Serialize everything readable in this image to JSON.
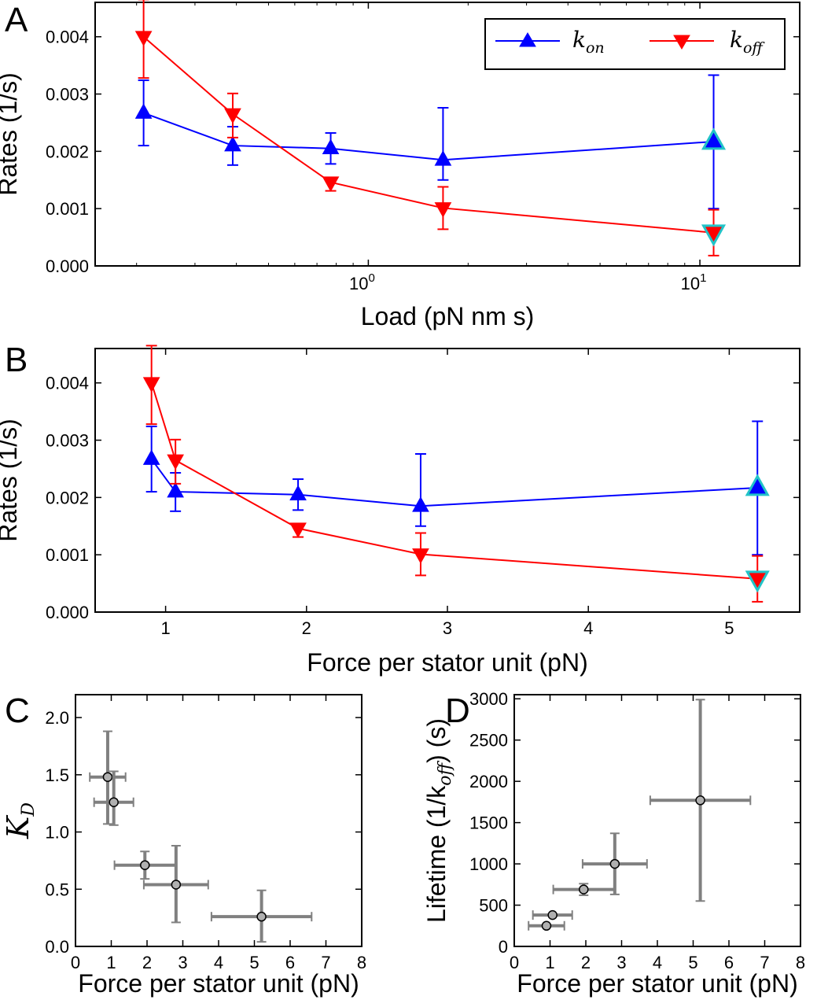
{
  "panels": {
    "A": {
      "label": "A"
    },
    "B": {
      "label": "B"
    },
    "C": {
      "label": "C"
    },
    "D": {
      "label": "D"
    }
  },
  "legend": {
    "kon": "k",
    "kon_sub": "on",
    "koff": "k",
    "koff_sub": "off"
  },
  "colors": {
    "kon": "#0000ff",
    "koff": "#ff0000",
    "highlight": "#22c3c8",
    "errbar_cd": "#808080",
    "marker_cd": "#b0b0b0"
  },
  "chart_data": [
    {
      "panel": "A",
      "type": "line",
      "xscale": "log",
      "xlabel": "Load (pN nm s)",
      "ylabel": "Rates (1/s)",
      "xlim": [
        0.15,
        20
      ],
      "ylim": [
        0,
        0.0046
      ],
      "xticks": [
        1,
        10
      ],
      "xtick_labels": [
        [
          "10",
          "0"
        ],
        [
          "10",
          "1"
        ]
      ],
      "yticks": [
        0,
        0.001,
        0.002,
        0.003,
        0.004
      ],
      "ytick_labels": [
        "0.000",
        "0.001",
        "0.002",
        "0.003",
        "0.004"
      ],
      "series": [
        {
          "name": "k_on",
          "color": "#0000ff",
          "marker": "triangle-up",
          "x": [
            0.21,
            0.39,
            0.77,
            1.68,
            11.0
          ],
          "y": [
            0.00267,
            0.0021,
            0.00205,
            0.00185,
            0.00217
          ],
          "yerr_low": [
            0.00057,
            0.00034,
            0.00027,
            0.00035,
            0.00117
          ],
          "yerr_high": [
            0.00057,
            0.00033,
            0.00027,
            0.00091,
            0.00116
          ],
          "highlight_last": true
        },
        {
          "name": "k_off",
          "color": "#ff0000",
          "marker": "triangle-down",
          "x": [
            0.21,
            0.39,
            0.77,
            1.68,
            11.0
          ],
          "y": [
            0.004,
            0.00265,
            0.00146,
            0.00101,
            0.00058
          ],
          "yerr_low": [
            0.00072,
            0.00041,
            0.00015,
            0.00037,
            0.0004
          ],
          "yerr_high": [
            0.00065,
            0.00036,
            3e-05,
            0.00037,
            0.0004
          ],
          "highlight_last": true
        }
      ]
    },
    {
      "panel": "B",
      "type": "line",
      "xlabel": "Force per stator unit (pN)",
      "ylabel": "Rates (1/s)",
      "xlim": [
        0.5,
        5.5
      ],
      "ylim": [
        0,
        0.0046
      ],
      "xticks": [
        1,
        2,
        3,
        4,
        5
      ],
      "xtick_labels": [
        "1",
        "2",
        "3",
        "4",
        "5"
      ],
      "yticks": [
        0,
        0.001,
        0.002,
        0.003,
        0.004
      ],
      "ytick_labels": [
        "0.000",
        "0.001",
        "0.002",
        "0.003",
        "0.004"
      ],
      "series": [
        {
          "name": "k_on",
          "color": "#0000ff",
          "marker": "triangle-up",
          "x": [
            0.9,
            1.07,
            1.94,
            2.81,
            5.2
          ],
          "y": [
            0.00267,
            0.0021,
            0.00205,
            0.00185,
            0.00217
          ],
          "yerr_low": [
            0.00057,
            0.00034,
            0.00027,
            0.00035,
            0.00117
          ],
          "yerr_high": [
            0.00057,
            0.00033,
            0.00027,
            0.00091,
            0.00116
          ],
          "highlight_last": true
        },
        {
          "name": "k_off",
          "color": "#ff0000",
          "marker": "triangle-down",
          "x": [
            0.9,
            1.07,
            1.94,
            2.81,
            5.2
          ],
          "y": [
            0.004,
            0.00265,
            0.00146,
            0.00101,
            0.00058
          ],
          "yerr_low": [
            0.00072,
            0.00041,
            0.00015,
            0.00037,
            0.0004
          ],
          "yerr_high": [
            0.00065,
            0.00036,
            3e-05,
            0.00037,
            0.0004
          ],
          "highlight_last": true
        }
      ]
    },
    {
      "panel": "C",
      "type": "scatter",
      "xlabel": "Force per stator unit (pN)",
      "ylabel": "K",
      "ylabel_sub": "D",
      "xlim": [
        0,
        8
      ],
      "ylim": [
        0,
        2.2
      ],
      "xticks": [
        0,
        1,
        2,
        3,
        4,
        5,
        6,
        7,
        8
      ],
      "xtick_labels": [
        "0",
        "1",
        "2",
        "3",
        "4",
        "5",
        "6",
        "7",
        "8"
      ],
      "yticks": [
        0,
        0.5,
        1.0,
        1.5,
        2.0
      ],
      "ytick_labels": [
        "0.0",
        "0.5",
        "1.0",
        "1.5",
        "2.0"
      ],
      "points": [
        {
          "x": 0.9,
          "y": 1.48,
          "xerr": 0.5,
          "yerr_low": 0.41,
          "yerr_high": 0.4
        },
        {
          "x": 1.07,
          "y": 1.26,
          "xerr": 0.55,
          "yerr_low": 0.2,
          "yerr_high": 0.27
        },
        {
          "x": 1.94,
          "y": 0.71,
          "xerr": 0.85,
          "yerr_low": 0.12,
          "yerr_high": 0.12
        },
        {
          "x": 2.81,
          "y": 0.54,
          "xerr": 0.9,
          "yerr_low": 0.33,
          "yerr_high": 0.34
        },
        {
          "x": 5.2,
          "y": 0.26,
          "xerr": 1.4,
          "yerr_low": 0.22,
          "yerr_high": 0.23
        }
      ]
    },
    {
      "panel": "D",
      "type": "scatter",
      "xlabel": "Force per stator unit (pN)",
      "ylabel": "Lifetime (1/k",
      "ylabel_sub": "off",
      "ylabel_end": ") (s)",
      "xlim": [
        0,
        8
      ],
      "ylim": [
        0,
        3050
      ],
      "xticks": [
        0,
        1,
        2,
        3,
        4,
        5,
        6,
        7,
        8
      ],
      "xtick_labels": [
        "0",
        "1",
        "2",
        "3",
        "4",
        "5",
        "6",
        "7",
        "8"
      ],
      "yticks": [
        0,
        500,
        1000,
        1500,
        2000,
        2500,
        3000
      ],
      "ytick_labels": [
        "0",
        "500",
        "1000",
        "1500",
        "2000",
        "2500",
        "3000"
      ],
      "points": [
        {
          "x": 0.9,
          "y": 250,
          "xerr": 0.5,
          "yerr_low": 0,
          "yerr_high": 0
        },
        {
          "x": 1.07,
          "y": 380,
          "xerr": 0.55,
          "yerr_low": 0,
          "yerr_high": 0
        },
        {
          "x": 1.94,
          "y": 690,
          "xerr": 0.85,
          "yerr_low": 70,
          "yerr_high": 70
        },
        {
          "x": 2.81,
          "y": 1000,
          "xerr": 0.9,
          "yerr_low": 370,
          "yerr_high": 370
        },
        {
          "x": 5.2,
          "y": 1770,
          "xerr": 1.4,
          "yerr_low": 1220,
          "yerr_high": 1220
        }
      ]
    }
  ]
}
